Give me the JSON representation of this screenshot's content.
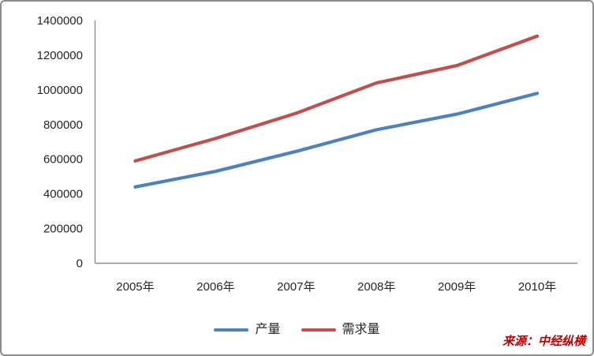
{
  "source_note": {
    "text": "来源：中经纵横",
    "color": "#c00000"
  },
  "chart_data": {
    "type": "line",
    "title": "",
    "xlabel": "",
    "ylabel": "",
    "categories": [
      "2005年",
      "2006年",
      "2007年",
      "2008年",
      "2009年",
      "2010年"
    ],
    "series": [
      {
        "name": "产量",
        "color": "#4f81bd",
        "values": [
          440000,
          530000,
          645000,
          770000,
          860000,
          980000
        ]
      },
      {
        "name": "需求量",
        "color": "#c0504d",
        "values": [
          590000,
          720000,
          865000,
          1040000,
          1140000,
          1310000
        ]
      }
    ],
    "ylim": [
      0,
      1400000
    ],
    "y_tick_step": 200000,
    "y_tick_labels": [
      "0",
      "200000",
      "400000",
      "600000",
      "800000",
      "1000000",
      "1200000",
      "1400000"
    ],
    "grid": false,
    "legend_position": "bottom",
    "axis_color": "#8c8c8c",
    "text_color": "#262626"
  }
}
